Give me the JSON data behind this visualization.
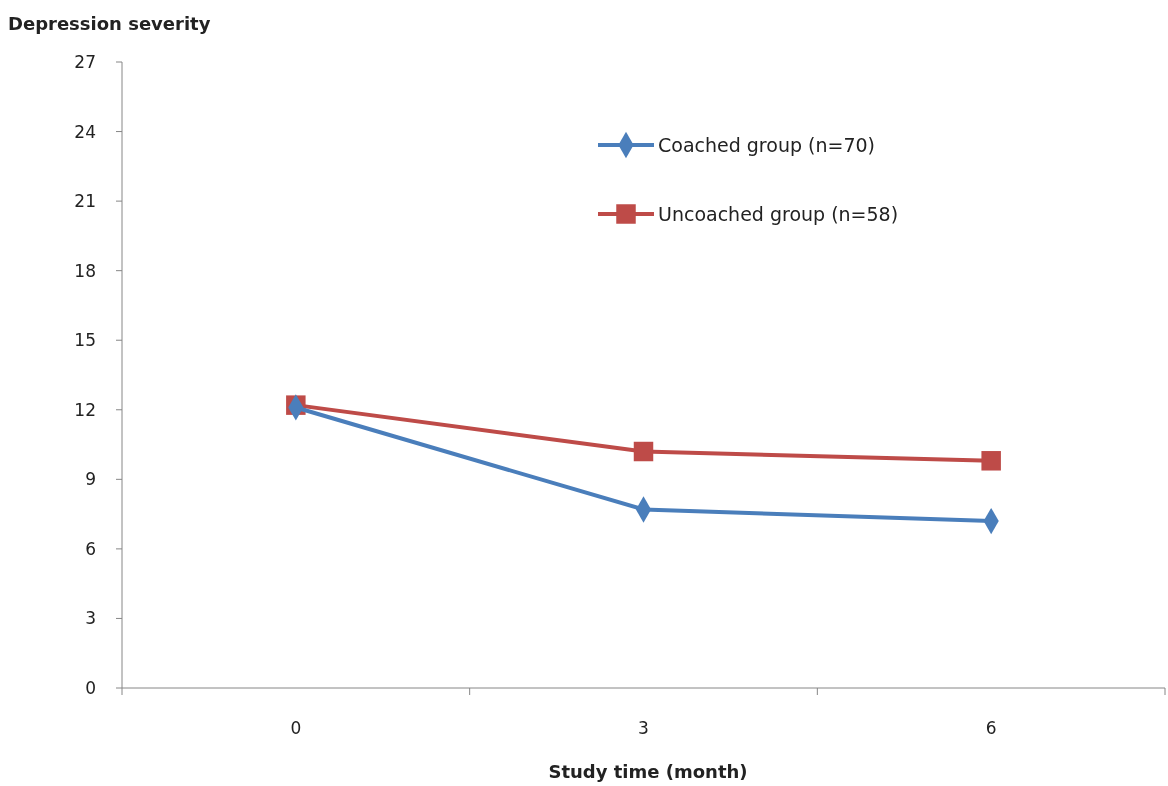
{
  "chart_data": {
    "type": "line",
    "xlabel": "Study time (month)",
    "ylabel": "Depression severity",
    "categories": [
      "0",
      "3",
      "6"
    ],
    "series": [
      {
        "name": "Coached group (n=70)",
        "color": "#4a7ebb",
        "marker": "diamond",
        "values": [
          12.1,
          7.7,
          7.2
        ]
      },
      {
        "name": "Uncoached group (n=58)",
        "color": "#be4b48",
        "marker": "square",
        "values": [
          12.2,
          10.2,
          9.8
        ]
      }
    ],
    "ylim": [
      0,
      27
    ],
    "yticks": [
      0,
      3,
      6,
      9,
      12,
      15,
      18,
      21,
      24,
      27
    ],
    "grid": false,
    "legend": "top right",
    "line_style": "solid"
  }
}
